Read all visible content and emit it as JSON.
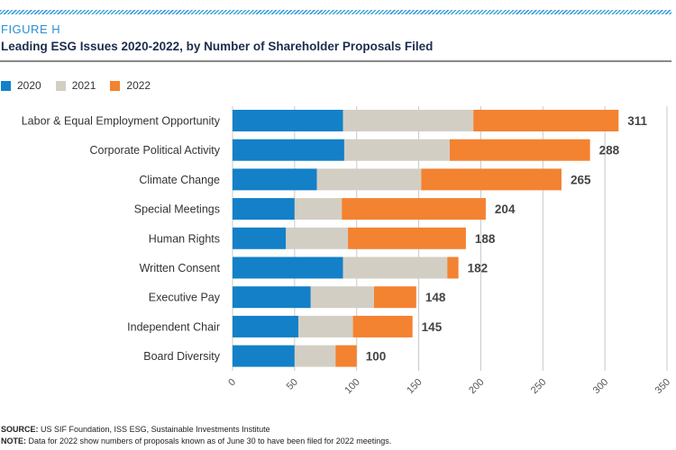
{
  "figure_label": "FIGURE H",
  "chart_data": {
    "type": "bar",
    "orientation": "horizontal",
    "stacked": true,
    "title": "Leading ESG Issues 2020-2022, by Number of Shareholder Proposals Filed",
    "categories": [
      "Labor & Equal Employment Opportunity",
      "Corporate Political Activity",
      "Climate Change",
      "Special Meetings",
      "Human Rights",
      "Written Consent",
      "Executive Pay",
      "Independent Chair",
      "Board Diversity"
    ],
    "series": [
      {
        "name": "2020",
        "color": "#1380c8",
        "values": [
          89,
          90,
          68,
          50,
          43,
          89,
          63,
          53,
          50
        ]
      },
      {
        "name": "2021",
        "color": "#d3cec3",
        "values": [
          105,
          85,
          84,
          38,
          50,
          84,
          51,
          44,
          33
        ]
      },
      {
        "name": "2022",
        "color": "#f38231",
        "values": [
          117,
          113,
          113,
          116,
          95,
          9,
          34,
          48,
          17
        ]
      }
    ],
    "totals": [
      "311",
      "288",
      "265",
      "204",
      "188",
      "182",
      "148",
      "145",
      "100"
    ],
    "xlim": [
      0,
      350
    ],
    "xticks": [
      "0",
      "50",
      "100",
      "150",
      "200",
      "250",
      "300",
      "350"
    ],
    "grid": true,
    "legend_position": "top-left"
  },
  "footer": {
    "source_label": "SOURCE:",
    "source_text": " US SIF Foundation, ISS ESG, Sustainable Investments Institute",
    "note_label": "NOTE:",
    "note_text": " Data for 2022 show numbers of proposals known as of June 30 to have been filed for 2022 meetings."
  }
}
